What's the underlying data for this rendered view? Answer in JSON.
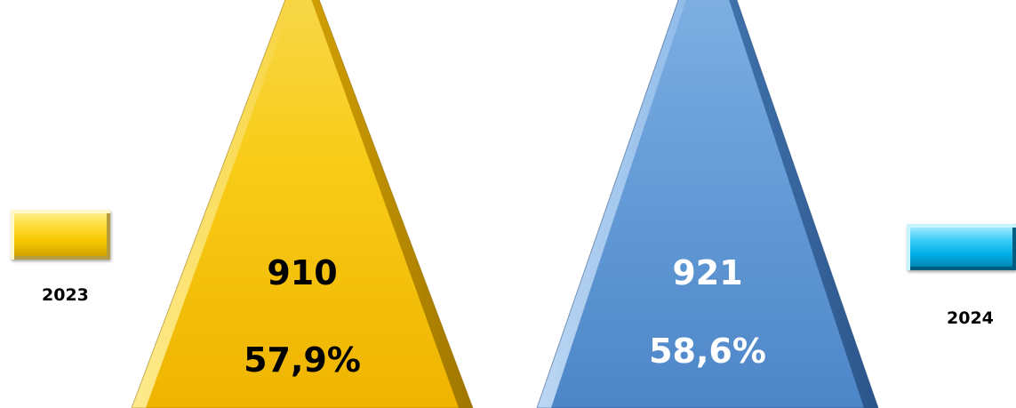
{
  "chart_data": {
    "type": "bar",
    "categories": [
      "2023",
      "2024"
    ],
    "values": [
      910,
      921
    ],
    "percentages": [
      "57,9%",
      "58,6%"
    ],
    "value_labels": [
      "910",
      "921"
    ],
    "legend": [
      "2023",
      "2024"
    ],
    "colors": [
      "#f5c400",
      "#5d96d2"
    ],
    "text_colors": [
      "#000000",
      "#ffffff"
    ],
    "ylim": [
      0,
      1000
    ]
  }
}
